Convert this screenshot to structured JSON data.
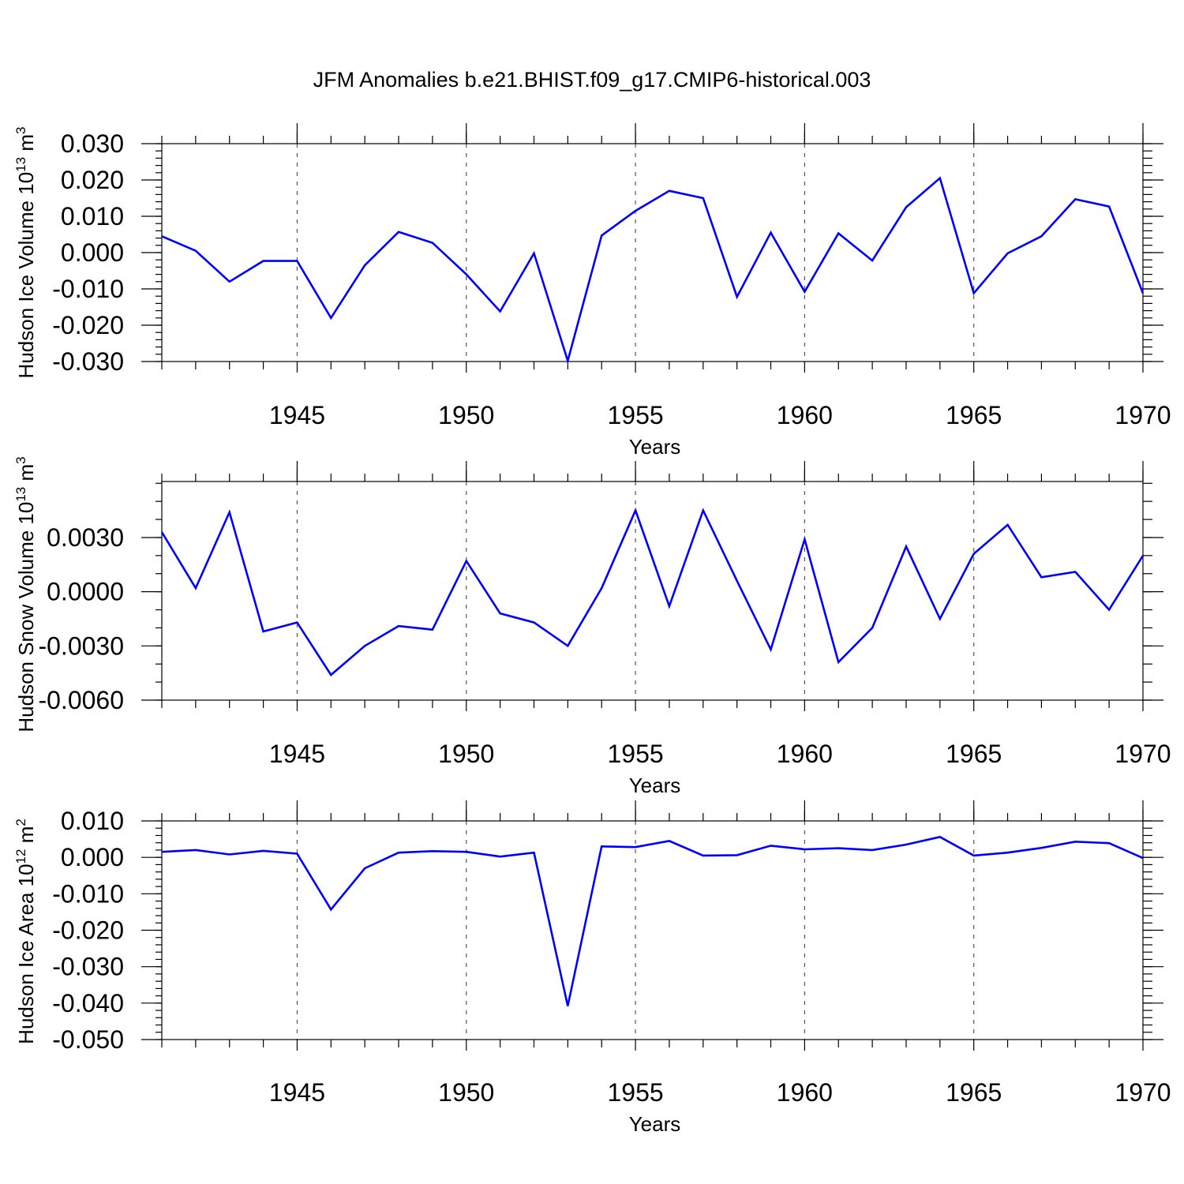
{
  "title": "JFM Anomalies b.e21.BHIST.f09_g17.CMIP6-historical.003",
  "chart_data": [
    {
      "type": "line",
      "name": "ice-volume",
      "ylabel": "Hudson Ice Volume 10",
      "ylabel_exp": "13",
      "ylabel_unit": " m",
      "ylabel_unit_exp": "3",
      "xlabel": "Years",
      "xlim": [
        1941,
        1970
      ],
      "ylim": [
        -0.03,
        0.03
      ],
      "ylim_top": 0.03,
      "yticks": [
        -0.03,
        -0.02,
        -0.01,
        0.0,
        0.01,
        0.02,
        0.03
      ],
      "ytick_labels": [
        "-0.030",
        "-0.020",
        "-0.010",
        "0.000",
        "0.010",
        "0.020",
        "0.030"
      ],
      "yminor_step": 0.002,
      "xticks": [
        1945,
        1950,
        1955,
        1960,
        1965,
        1970
      ],
      "xtick_labels": [
        "1945",
        "1950",
        "1955",
        "1960",
        "1965",
        "1970"
      ],
      "x": [
        1941,
        1942,
        1943,
        1944,
        1945,
        1946,
        1947,
        1948,
        1949,
        1950,
        1951,
        1952,
        1953,
        1954,
        1955,
        1956,
        1957,
        1958,
        1959,
        1960,
        1961,
        1962,
        1963,
        1964,
        1965,
        1966,
        1967,
        1968,
        1969,
        1970
      ],
      "values": [
        0.0045,
        0.0005,
        -0.008,
        -0.0023,
        -0.0023,
        -0.018,
        -0.0035,
        0.0057,
        0.0027,
        -0.006,
        -0.0162,
        -0.0002,
        -0.0298,
        0.0047,
        0.0115,
        0.017,
        0.015,
        -0.0122,
        0.0055,
        -0.0108,
        0.0053,
        -0.0022,
        0.0125,
        0.0205,
        -0.0112,
        -0.0002,
        0.0045,
        0.0147,
        0.0127,
        -0.0112
      ],
      "color": "#0000ff"
    },
    {
      "type": "line",
      "name": "snow-volume",
      "ylabel": "Hudson Snow Volume 10",
      "ylabel_exp": "13",
      "ylabel_unit": " m",
      "ylabel_unit_exp": "3",
      "xlabel": "Years",
      "xlim": [
        1941,
        1970
      ],
      "ylim": [
        -0.006,
        0.006
      ],
      "ylim_top": 0.0061,
      "yticks": [
        -0.006,
        -0.003,
        0.0,
        0.003
      ],
      "ytick_labels": [
        "-0.0060",
        "-0.0030",
        "0.0000",
        "0.0030"
      ],
      "yminor_step": 0.001,
      "xticks": [
        1945,
        1950,
        1955,
        1960,
        1965,
        1970
      ],
      "xtick_labels": [
        "1945",
        "1950",
        "1955",
        "1960",
        "1965",
        "1970"
      ],
      "x": [
        1941,
        1942,
        1943,
        1944,
        1945,
        1946,
        1947,
        1948,
        1949,
        1950,
        1951,
        1952,
        1953,
        1954,
        1955,
        1956,
        1957,
        1958,
        1959,
        1960,
        1961,
        1962,
        1963,
        1964,
        1965,
        1966,
        1967,
        1968,
        1969,
        1970
      ],
      "values": [
        0.0033,
        0.0002,
        0.0044,
        -0.0022,
        -0.0017,
        -0.0046,
        -0.003,
        -0.0019,
        -0.0021,
        0.0017,
        -0.0012,
        -0.0017,
        -0.003,
        0.0002,
        0.0045,
        -0.0008,
        0.0045,
        0.0006,
        -0.0032,
        0.0029,
        -0.0039,
        -0.002,
        0.0025,
        -0.0015,
        0.0021,
        0.0037,
        0.0008,
        0.0011,
        -0.001,
        0.002
      ],
      "color": "#0000ff"
    },
    {
      "type": "line",
      "name": "ice-area",
      "ylabel": "Hudson Ice Area 10",
      "ylabel_exp": "12",
      "ylabel_unit": " m",
      "ylabel_unit_exp": "2",
      "xlabel": "Years",
      "xlim": [
        1941,
        1970
      ],
      "ylim": [
        -0.05,
        0.01
      ],
      "ylim_top": 0.01,
      "yticks": [
        -0.05,
        -0.04,
        -0.03,
        -0.02,
        -0.01,
        0.0,
        0.01
      ],
      "ytick_labels": [
        "-0.050",
        "-0.040",
        "-0.030",
        "-0.020",
        "-0.010",
        "0.000",
        "0.010"
      ],
      "yminor_step": 0.002,
      "xticks": [
        1945,
        1950,
        1955,
        1960,
        1965,
        1970
      ],
      "xtick_labels": [
        "1945",
        "1950",
        "1955",
        "1960",
        "1965",
        "1970"
      ],
      "x": [
        1941,
        1942,
        1943,
        1944,
        1945,
        1946,
        1947,
        1948,
        1949,
        1950,
        1951,
        1952,
        1953,
        1954,
        1955,
        1956,
        1957,
        1958,
        1959,
        1960,
        1961,
        1962,
        1963,
        1964,
        1965,
        1966,
        1967,
        1968,
        1969,
        1970
      ],
      "values": [
        0.0015,
        0.002,
        0.0008,
        0.0018,
        0.001,
        -0.0143,
        -0.003,
        0.0013,
        0.0017,
        0.0015,
        0.0002,
        0.0013,
        -0.0408,
        0.003,
        0.0028,
        0.0045,
        0.0005,
        0.0006,
        0.0032,
        0.0022,
        0.0025,
        0.002,
        0.0035,
        0.0056,
        0.0005,
        0.0013,
        0.0026,
        0.0043,
        0.0039,
        -0.0002
      ],
      "color": "#0000ff"
    }
  ]
}
